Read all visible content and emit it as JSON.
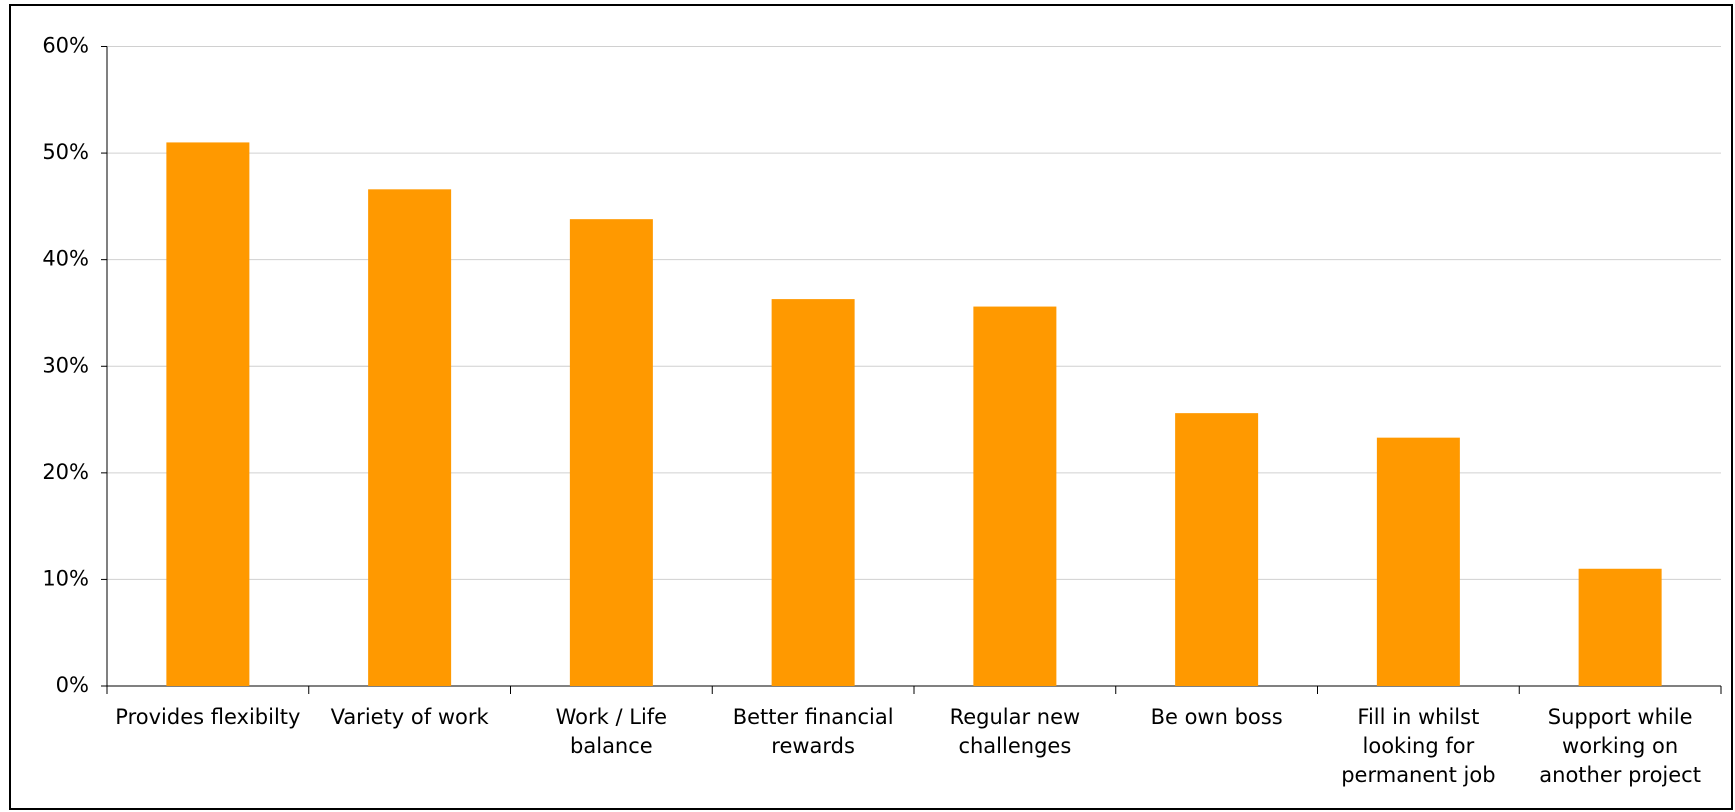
{
  "chart_data": {
    "type": "bar",
    "categories": [
      "Provides flexibilty",
      "Variety of work",
      "Work / Life balance",
      "Better financial rewards",
      "Regular new challenges",
      "Be own boss",
      "Fill in whilst looking for permanent job",
      "Support while working on another project"
    ],
    "values": [
      51.0,
      46.6,
      43.8,
      36.3,
      35.6,
      25.6,
      23.3,
      11.0
    ],
    "color": "#ff9900",
    "ylim": [
      0,
      60
    ],
    "yticks": [
      {
        "value": 0,
        "label": "0%"
      },
      {
        "value": 10,
        "label": "10%"
      },
      {
        "value": 20,
        "label": "20%"
      },
      {
        "value": 30,
        "label": "30%"
      },
      {
        "value": 40,
        "label": "40%"
      },
      {
        "value": 50,
        "label": "50%"
      },
      {
        "value": 60,
        "label": "60%"
      }
    ],
    "grid": true
  }
}
